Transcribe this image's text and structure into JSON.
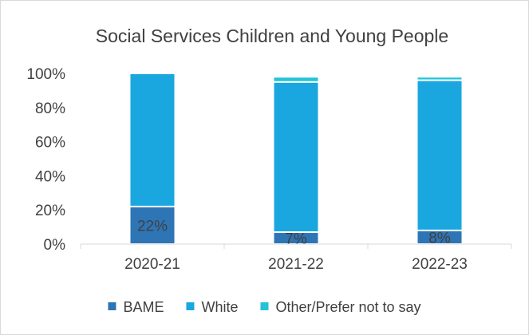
{
  "chart_data": {
    "type": "bar",
    "stacked": true,
    "title": "Social Services Children and Young People",
    "categories": [
      "2020-21",
      "2021-22",
      "2022-23"
    ],
    "series": [
      {
        "name": "BAME",
        "values": [
          22,
          7,
          8
        ],
        "color": "#2e75b6",
        "data_labels": [
          "22%",
          "7%",
          "8%"
        ]
      },
      {
        "name": "White",
        "values": [
          78,
          88,
          88
        ],
        "color": "#1aa7e0"
      },
      {
        "name": "Other/Prefer not to say",
        "values": [
          0,
          3,
          2
        ],
        "color": "#22c3d6"
      }
    ],
    "ylim": [
      0,
      100
    ],
    "yticks": [
      "0%",
      "20%",
      "40%",
      "60%",
      "80%",
      "100%"
    ],
    "legend_position": "bottom",
    "grid": false
  }
}
